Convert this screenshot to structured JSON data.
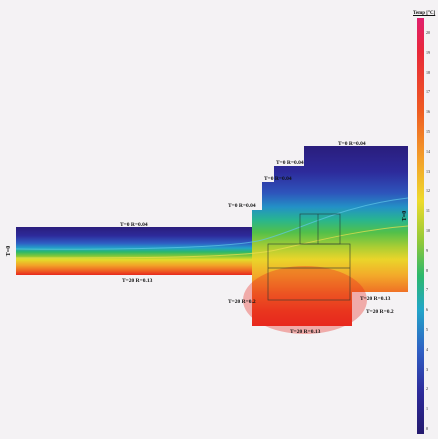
{
  "legend": {
    "title": "Temp [°C]",
    "ticks": [
      "20",
      "19",
      "18",
      "17",
      "16",
      "15",
      "14",
      "13",
      "12",
      "11",
      "10",
      "9",
      "8",
      "7",
      "6",
      "5",
      "4",
      "3",
      "2",
      "1",
      "0"
    ]
  },
  "boundary_labels": {
    "top_slab": "T=0 R=0.04",
    "upper_step": "T=0 R=0.04",
    "mid_step": "T=0 R=0.04",
    "step_low": "T=0 R=0.04",
    "top_block": "T=0 R=0.04",
    "left_end": "T=0",
    "right_end": "T=0",
    "bottom_slab": "T=20 R=0.13",
    "lower_left": "T=20 R=0.2",
    "lower_right": "T=20 R=0.13",
    "lower_right2": "T=20 R=0.2",
    "bottom_block": "T=20 R=0.13"
  },
  "colors": {
    "cold": "#2a1d7c",
    "warm": "#e8281e",
    "background": "#f4f2f4"
  }
}
